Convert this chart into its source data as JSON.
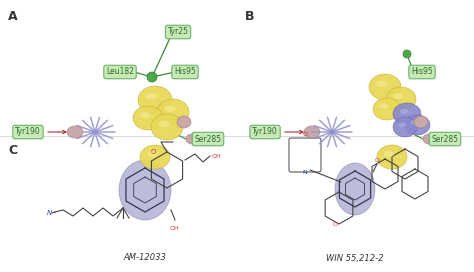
{
  "bg_color": "#ffffff",
  "panel_labels": [
    "A",
    "B",
    "C"
  ],
  "green_label_color": "#2d6e2d",
  "green_label_bg": "#c8e8b8",
  "green_label_edge": "#5aaa5a",
  "yellow_sphere_face": "#e8d858",
  "yellow_sphere_edge": "#c8b030",
  "blue_sphere_face": "#8888cc",
  "blue_sphere_edge": "#6666aa",
  "pink_sphere_face": "#c8a8a8",
  "pink_sphere_edge": "#a08080",
  "star_color": "#9090cc",
  "hub_green": "#4aaa4a",
  "hub_green_edge": "#2d7a2d",
  "line_green": "#3a8a3a",
  "line_red": "#aa3333",
  "line_dark": "#555566",
  "mol_label_A": "AM-12033",
  "mol_label_B": "WIN 55,212-2",
  "purple_fill": "#8888bb",
  "purple_edge": "#6666aa",
  "mol_dark": "#444444",
  "mol_red": "#cc3333",
  "mol_blue": "#2244aa"
}
